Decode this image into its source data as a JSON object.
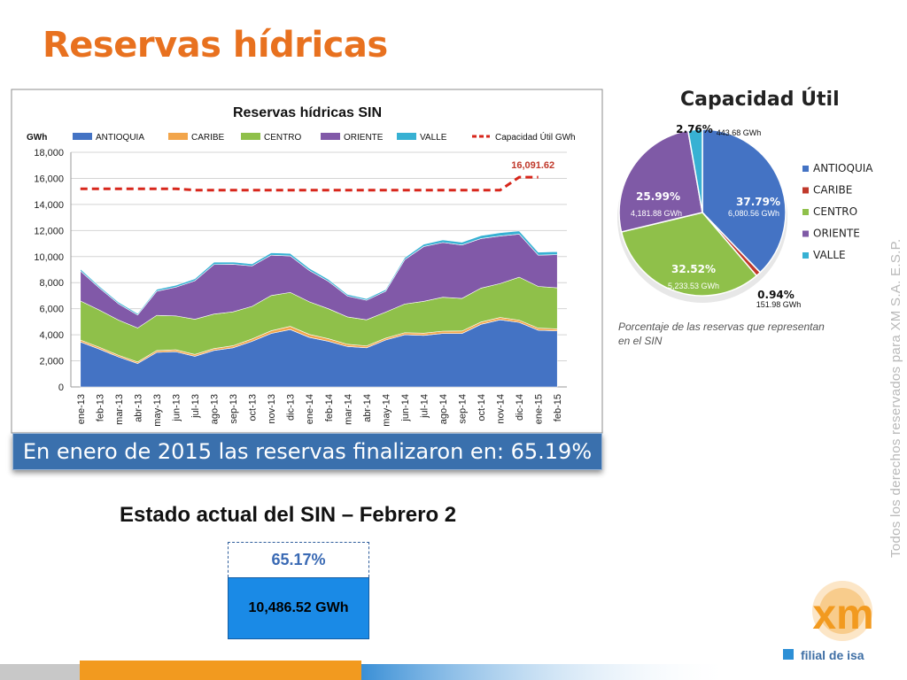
{
  "title": "Reservas hídricas",
  "chart_data": [
    {
      "type": "area",
      "title": "Reservas hídricas SIN",
      "ylabel": "GWh",
      "ylim": [
        0,
        18000
      ],
      "yticks": [
        "0",
        "2,000",
        "4,000",
        "6,000",
        "8,000",
        "10,000",
        "12,000",
        "14,000",
        "16,000",
        "18,000"
      ],
      "categories": [
        "ene-13",
        "feb-13",
        "mar-13",
        "abr-13",
        "may-13",
        "jun-13",
        "jul-13",
        "ago-13",
        "sep-13",
        "oct-13",
        "nov-13",
        "dic-13",
        "ene-14",
        "feb-14",
        "mar-14",
        "abr-14",
        "may-14",
        "jun-14",
        "jul-14",
        "ago-14",
        "sep-14",
        "oct-14",
        "nov-14",
        "dic-14",
        "ene-15",
        "feb-15"
      ],
      "series": [
        {
          "name": "ANTIOQUIA",
          "color": "#4473c4",
          "values": [
            3450,
            2900,
            2300,
            1800,
            2650,
            2700,
            2350,
            2800,
            3000,
            3500,
            4100,
            4400,
            3800,
            3500,
            3100,
            3000,
            3600,
            4000,
            3950,
            4100,
            4100,
            4800,
            5150,
            4950,
            4350,
            4300
          ]
        },
        {
          "name": "CARIBE",
          "color": "#f2a54b",
          "values": [
            150,
            140,
            130,
            120,
            140,
            150,
            140,
            140,
            160,
            180,
            210,
            250,
            230,
            200,
            170,
            150,
            140,
            160,
            170,
            180,
            190,
            180,
            180,
            170,
            160,
            150
          ]
        },
        {
          "name": "CENTRO",
          "color": "#8fc04a",
          "values": [
            3000,
            2850,
            2700,
            2600,
            2700,
            2600,
            2700,
            2650,
            2600,
            2500,
            2700,
            2600,
            2500,
            2300,
            2100,
            2000,
            2000,
            2200,
            2450,
            2600,
            2500,
            2600,
            2600,
            3300,
            3200,
            3150
          ]
        },
        {
          "name": "ORIENTE",
          "color": "#8159a8",
          "values": [
            2300,
            1700,
            1250,
            1000,
            1850,
            2200,
            2950,
            3800,
            3650,
            3100,
            3100,
            2800,
            2400,
            2100,
            1600,
            1500,
            1600,
            3400,
            4200,
            4200,
            4100,
            3800,
            3650,
            3300,
            2400,
            2550
          ]
        },
        {
          "name": "VALLE",
          "color": "#37b1d3",
          "values": [
            150,
            130,
            120,
            110,
            140,
            150,
            160,
            180,
            170,
            160,
            180,
            190,
            170,
            150,
            130,
            120,
            130,
            160,
            180,
            200,
            210,
            230,
            250,
            250,
            230,
            230
          ]
        },
        {
          "name": "Capacidad Útil GWh",
          "color": "#d7261b",
          "dashed": true,
          "values": [
            15200,
            15200,
            15200,
            15200,
            15200,
            15200,
            15100,
            15100,
            15100,
            15100,
            15100,
            15100,
            15100,
            15100,
            15100,
            15100,
            15100,
            15100,
            15100,
            15100,
            15100,
            15100,
            15100,
            16091.62,
            16091.62,
            null
          ]
        }
      ],
      "annotations": [
        "16,091.62"
      ]
    },
    {
      "type": "pie",
      "title": "Capacidad Útil",
      "slices": [
        {
          "name": "ANTIOQUIA",
          "percent": 37.79,
          "pct_label": "37.79%",
          "gwh_label": "6,080.56 GWh",
          "color": "#4473c4"
        },
        {
          "name": "CARIBE",
          "percent": 0.94,
          "pct_label": "0.94%",
          "gwh_label": "151.98 GWh",
          "color": "#c0392b"
        },
        {
          "name": "CENTRO",
          "percent": 32.52,
          "pct_label": "32.52%",
          "gwh_label": "5,233.53 GWh",
          "color": "#8fc04a"
        },
        {
          "name": "ORIENTE",
          "percent": 25.99,
          "pct_label": "25.99%",
          "gwh_label": "4,181.88 GWh",
          "color": "#7f5aa6"
        },
        {
          "name": "VALLE",
          "percent": 2.76,
          "pct_label": "2.76%",
          "gwh_label": "443.68 GWh",
          "color": "#37b1d3"
        }
      ]
    }
  ],
  "pie_caption": "Porcentaje de las reservas que representan en el SIN",
  "banner": "En enero de 2015 las reservas finalizaron en: 65.19%",
  "estado": {
    "title": "Estado actual del SIN – Febrero 2",
    "percent": "65.17%",
    "gwh": "10,486.52 GWh"
  },
  "vertical_text": "Todos los derechos reservados para XM S.A. E.S.P.",
  "logo": {
    "brand": "xm",
    "tagline": "filial de isa"
  },
  "colors": {
    "title": "#e8711f",
    "banner": "#3a70ad",
    "accent_blue": "#1a8ae6",
    "logo_orange": "#f29a1f"
  }
}
